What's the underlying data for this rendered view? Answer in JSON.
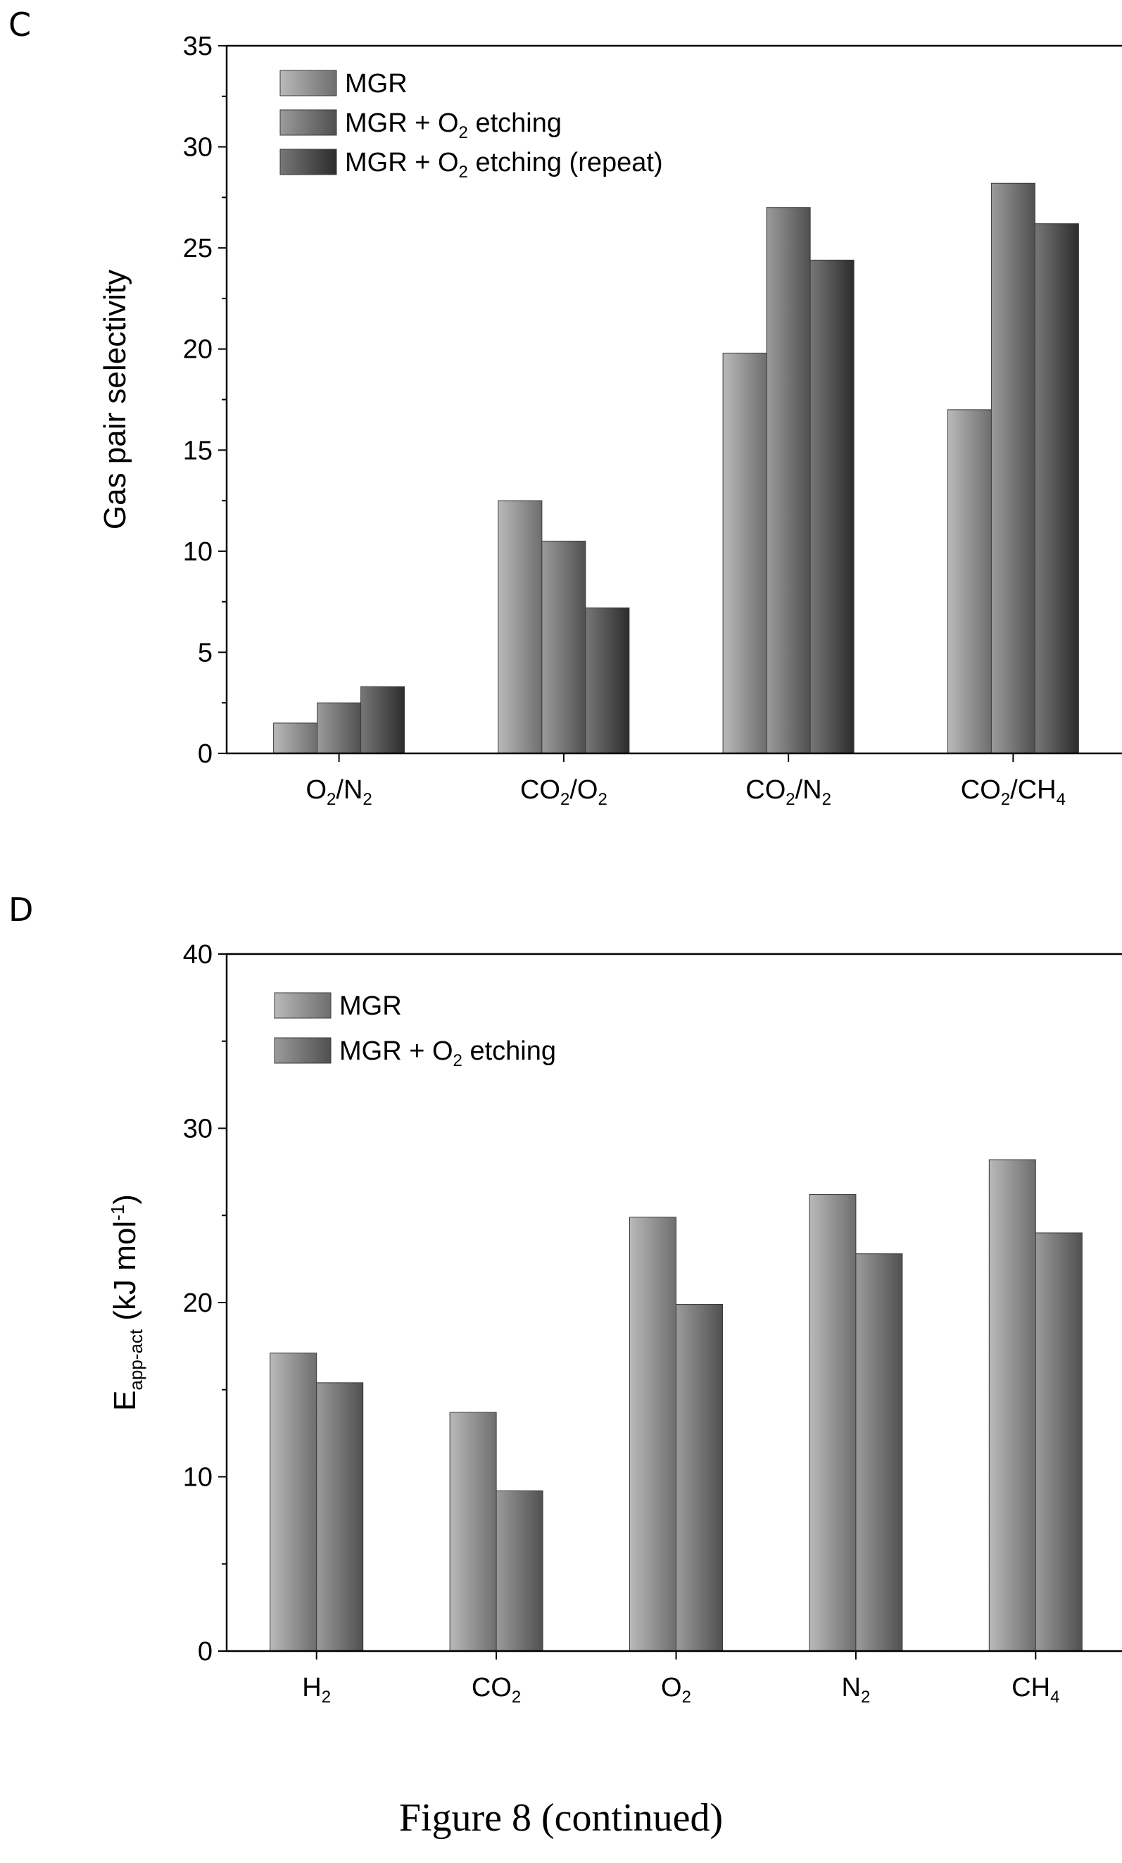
{
  "panels": {
    "c_label": "C",
    "d_label": "D"
  },
  "caption": "Figure 8 (continued)",
  "colors": {
    "series1": "#8c8c8c",
    "series2": "#6e6e6e",
    "series3": "#4a4a4a"
  },
  "chart_data": [
    {
      "type": "bar",
      "ylabel": "Gas pair selectivity",
      "ylim": [
        0,
        35
      ],
      "yticks": [
        0,
        5,
        10,
        15,
        20,
        25,
        30,
        35
      ],
      "categories": [
        {
          "main": "O",
          "s1": "2",
          "mid": "/N",
          "s2": "2"
        },
        {
          "main": "CO",
          "s1": "2",
          "mid": "/O",
          "s2": "2"
        },
        {
          "main": "CO",
          "s1": "2",
          "mid": "/N",
          "s2": "2"
        },
        {
          "main": "CO",
          "s1": "2",
          "mid": "/CH",
          "s2": "4"
        }
      ],
      "legend_position": "top-left",
      "series": [
        {
          "name": "MGR",
          "legend": {
            "pre": "MGR",
            "sub": "",
            "post": ""
          },
          "values": [
            1.5,
            12.5,
            19.8,
            17.0
          ]
        },
        {
          "name": "MGR + O2 etching",
          "legend": {
            "pre": "MGR + O",
            "sub": "2",
            "post": " etching"
          },
          "values": [
            2.5,
            10.5,
            27.0,
            28.2
          ]
        },
        {
          "name": "MGR + O2 etching (repeat)",
          "legend": {
            "pre": "MGR + O",
            "sub": "2",
            "post": " etching (repeat)"
          },
          "values": [
            3.3,
            7.2,
            24.4,
            26.2
          ]
        }
      ]
    },
    {
      "type": "bar",
      "ylabel": {
        "pre": "E",
        "sub": "app-act",
        "post": " (kJ mol",
        "sup": "-1",
        "end": ")"
      },
      "ylim": [
        0,
        40
      ],
      "yticks": [
        0,
        10,
        20,
        30,
        40
      ],
      "categories": [
        {
          "main": "H",
          "s1": "2",
          "mid": "",
          "s2": ""
        },
        {
          "main": "CO",
          "s1": "2",
          "mid": "",
          "s2": ""
        },
        {
          "main": "O",
          "s1": "2",
          "mid": "",
          "s2": ""
        },
        {
          "main": "N",
          "s1": "2",
          "mid": "",
          "s2": ""
        },
        {
          "main": "CH",
          "s1": "4",
          "mid": "",
          "s2": ""
        }
      ],
      "legend_position": "top-left",
      "series": [
        {
          "name": "MGR",
          "legend": {
            "pre": "MGR",
            "sub": "",
            "post": ""
          },
          "values": [
            17.1,
            13.7,
            24.9,
            26.2,
            28.2
          ]
        },
        {
          "name": "MGR + O2 etching",
          "legend": {
            "pre": "MGR + O",
            "sub": "2",
            "post": " etching"
          },
          "values": [
            15.4,
            9.2,
            19.9,
            22.8,
            24.0
          ]
        }
      ]
    }
  ]
}
